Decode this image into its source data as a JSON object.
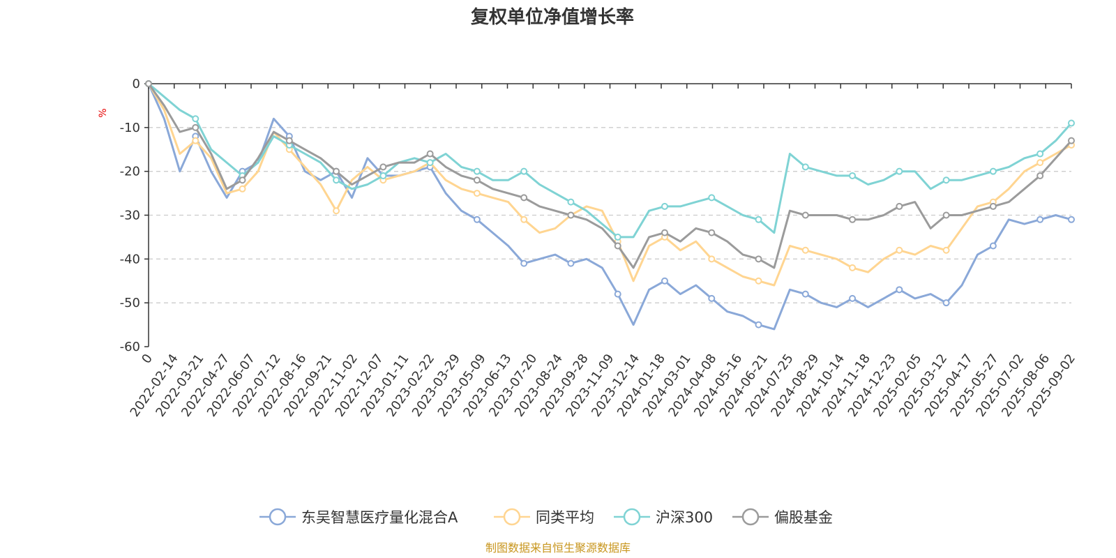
{
  "chart_data": {
    "type": "line",
    "title": "复权单位净值增长率",
    "ylabel": "%",
    "ylim": [
      -60,
      0
    ],
    "yticks": [
      0,
      -10,
      -20,
      -30,
      -40,
      -50,
      -60
    ],
    "grid": "horizontal dashed",
    "legend_position": "bottom",
    "x_tick_labels": [
      "0",
      "2022-02-14",
      "2022-03-21",
      "2022-04-27",
      "2022-06-07",
      "2022-07-12",
      "2022-08-16",
      "2022-09-21",
      "2022-11-02",
      "2022-12-07",
      "2023-01-11",
      "2023-02-22",
      "2023-03-29",
      "2023-05-09",
      "2023-06-13",
      "2023-07-20",
      "2023-08-24",
      "2023-09-28",
      "2023-11-09",
      "2023-12-14",
      "2024-01-18",
      "2024-03-01",
      "2024-04-08",
      "2024-05-16",
      "2024-06-21",
      "2024-07-25",
      "2024-08-29",
      "2024-10-14",
      "2024-11-18",
      "2024-12-23",
      "2025-02-05",
      "2025-03-12",
      "2025-04-17",
      "2025-05-27",
      "2025-07-02",
      "2025-08-06",
      "2025-09-02"
    ],
    "series": [
      {
        "name": "东吴智慧医疗量化混合A",
        "color": "#8aa8d8",
        "values": [
          0,
          -8,
          -20,
          -12,
          -20,
          -26,
          -20,
          -18,
          -8,
          -12,
          -20,
          -22,
          -20,
          -26,
          -17,
          -21,
          -21,
          -20,
          -19,
          -25,
          -29,
          -31,
          -34,
          -37,
          -41,
          -40,
          -39,
          -41,
          -40,
          -42,
          -48,
          -55,
          -47,
          -45,
          -48,
          -46,
          -49,
          -52,
          -53,
          -55,
          -56,
          -47,
          -48,
          -50,
          -51,
          -49,
          -51,
          -49,
          -47,
          -49,
          -48,
          -50,
          -46,
          -39,
          -37,
          -31,
          -32,
          -31,
          -30,
          -31
        ]
      },
      {
        "name": "同类平均",
        "color": "#ffd591",
        "values": [
          0,
          -6,
          -16,
          -13,
          -17,
          -25,
          -24,
          -20,
          -11,
          -15,
          -19,
          -23,
          -29,
          -22,
          -19,
          -22,
          -21,
          -20,
          -18,
          -22,
          -24,
          -25,
          -26,
          -27,
          -31,
          -34,
          -33,
          -30,
          -28,
          -29,
          -36,
          -45,
          -37,
          -35,
          -38,
          -36,
          -40,
          -42,
          -44,
          -45,
          -46,
          -37,
          -38,
          -39,
          -40,
          -42,
          -43,
          -40,
          -38,
          -39,
          -37,
          -38,
          -33,
          -28,
          -27,
          -24,
          -20,
          -18,
          -16,
          -14
        ]
      },
      {
        "name": "沪深300",
        "color": "#7fd3d4",
        "values": [
          0,
          -3,
          -6,
          -8,
          -15,
          -18,
          -21,
          -18,
          -12,
          -14,
          -16,
          -18,
          -22,
          -24,
          -23,
          -21,
          -18,
          -17,
          -18,
          -16,
          -19,
          -20,
          -22,
          -22,
          -20,
          -23,
          -25,
          -27,
          -29,
          -32,
          -35,
          -35,
          -29,
          -28,
          -28,
          -27,
          -26,
          -28,
          -30,
          -31,
          -34,
          -16,
          -19,
          -20,
          -21,
          -21,
          -23,
          -22,
          -20,
          -20,
          -24,
          -22,
          -22,
          -21,
          -20,
          -19,
          -17,
          -16,
          -13,
          -9
        ]
      },
      {
        "name": "偏股基金",
        "color": "#9b9b9b",
        "values": [
          0,
          -5,
          -11,
          -10,
          -16,
          -24,
          -22,
          -17,
          -11,
          -13,
          -15,
          -17,
          -20,
          -23,
          -21,
          -19,
          -18,
          -18,
          -16,
          -19,
          -21,
          -22,
          -24,
          -25,
          -26,
          -28,
          -29,
          -30,
          -31,
          -33,
          -37,
          -42,
          -35,
          -34,
          -36,
          -33,
          -34,
          -36,
          -39,
          -40,
          -42,
          -29,
          -30,
          -30,
          -30,
          -31,
          -31,
          -30,
          -28,
          -27,
          -33,
          -30,
          -30,
          -29,
          -28,
          -27,
          -24,
          -21,
          -17,
          -13
        ]
      }
    ]
  },
  "source_note": "制图数据来自恒生聚源数据库"
}
